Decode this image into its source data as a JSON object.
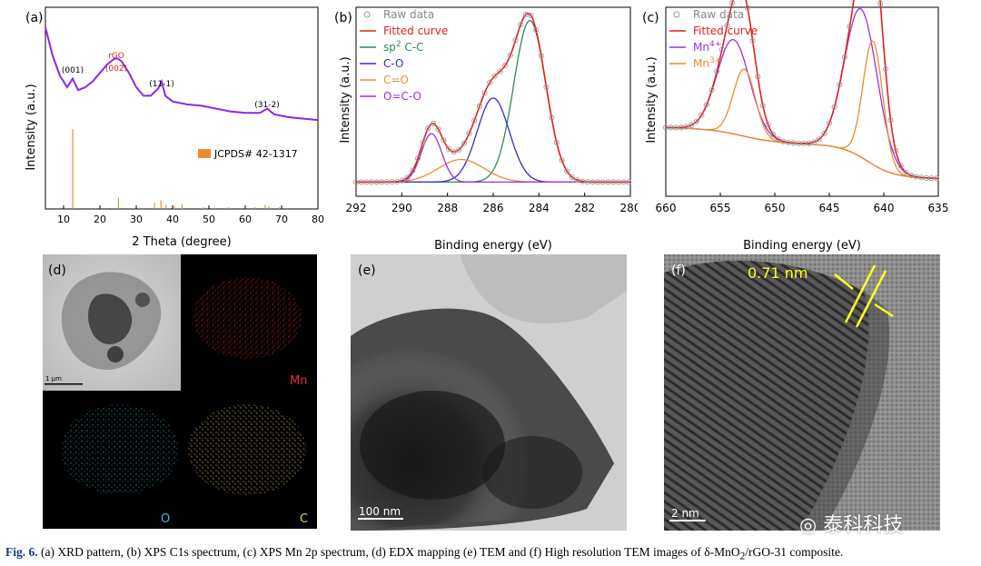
{
  "chart_data": [
    {
      "type": "line",
      "panel_label": "(a)",
      "xlabel": "2 Theta (degree)",
      "ylabel": "Intensity (a.u.)",
      "xlim": [
        5,
        80
      ],
      "xticks": [
        10,
        20,
        30,
        40,
        50,
        60,
        70,
        80
      ],
      "peak_labels": [
        {
          "text": "(001)",
          "x": 12.5
        },
        {
          "text": "rGO",
          "x": 24.5,
          "color": "#e02020"
        },
        {
          "text": "(002)",
          "x": 24.5,
          "color": "#e02020"
        },
        {
          "text": "(11-1)",
          "x": 37
        },
        {
          "text": "(31-2)",
          "x": 66
        }
      ],
      "series": [
        {
          "values_x": [
            5,
            7,
            9,
            11,
            12.5,
            14,
            16,
            18,
            20,
            22,
            24,
            25,
            26,
            28,
            30,
            32,
            34,
            36,
            37,
            38,
            40,
            44,
            48,
            52,
            56,
            60,
            64,
            66,
            68,
            72,
            76,
            80
          ],
          "values_y": [
            100,
            80,
            66,
            58,
            64,
            56,
            58,
            62,
            68,
            74,
            78,
            78,
            76,
            68,
            58,
            52,
            52,
            57,
            62,
            52,
            48,
            46,
            45,
            43,
            41,
            40,
            40,
            43,
            39,
            37,
            36,
            35
          ],
          "color": "#8a2be2"
        }
      ],
      "reference": {
        "name": "JCPDS# 42-1317",
        "color": "#f08a30",
        "lines_x": [
          12.5,
          25.1,
          35.0,
          36.8,
          38.2,
          40.5,
          42.6,
          48.5,
          55.4,
          62.7,
          65.5,
          66.5,
          69.4
        ],
        "lines_h": [
          100,
          14,
          8,
          11,
          5,
          4,
          6,
          2,
          2,
          2,
          5,
          3,
          2
        ]
      }
    },
    {
      "type": "line",
      "panel_label": "(b)",
      "xlabel": "Binding energy (eV)",
      "ylabel": "Intensity (a.u.)",
      "xlim": [
        292,
        280
      ],
      "xticks": [
        292,
        290,
        288,
        286,
        284,
        282,
        280
      ],
      "legend": [
        {
          "name": "Raw data",
          "color": "#999999",
          "marker": "circle"
        },
        {
          "name": "Fitted curve",
          "color": "#e02020"
        },
        {
          "name": "sp",
          "sup": "2",
          "suffix": " C-C",
          "color": "#2e8b57"
        },
        {
          "name": "C-O",
          "color": "#3030c0"
        },
        {
          "name": "C=O",
          "color": "#f08a30"
        },
        {
          "name": "O=C-O",
          "color": "#9b30e0"
        }
      ],
      "components": [
        {
          "name": "sp2 C-C",
          "center": 284.4,
          "height": 100,
          "width": 0.7,
          "color": "#2e8b57"
        },
        {
          "name": "C-O",
          "center": 286.0,
          "height": 52,
          "width": 0.7,
          "color": "#3030c0"
        },
        {
          "name": "C=O",
          "center": 287.4,
          "height": 14,
          "width": 1.0,
          "color": "#f08a30"
        },
        {
          "name": "O=C-O",
          "center": 288.7,
          "height": 30,
          "width": 0.45,
          "color": "#9b30e0"
        }
      ],
      "baseline": 2
    },
    {
      "type": "line",
      "panel_label": "(c)",
      "xlabel": "Binding energy (eV)",
      "ylabel": "Intensity (a.u.)",
      "xlim": [
        660,
        635
      ],
      "xticks": [
        660,
        655,
        650,
        645,
        640,
        635
      ],
      "legend": [
        {
          "name": "Raw data",
          "color": "#999999",
          "marker": "circle"
        },
        {
          "name": "Fitted curve",
          "color": "#e02020"
        },
        {
          "name": "Mn",
          "sup": "4+",
          "suffix": "",
          "color": "#9b30e0"
        },
        {
          "name": "Mn",
          "sup": "3+",
          "suffix": "",
          "color": "#f08a30"
        }
      ],
      "components": [
        {
          "name": "Mn4+ 2p1/2",
          "center": 653.8,
          "height": 42,
          "width": 1.5,
          "color": "#9b30e0"
        },
        {
          "name": "Mn3+ 2p1/2",
          "center": 652.8,
          "height": 30,
          "width": 1.0,
          "color": "#f08a30"
        },
        {
          "name": "Mn4+ 2p3/2",
          "center": 642.1,
          "height": 66,
          "width": 1.5,
          "color": "#9b30e0"
        },
        {
          "name": "Mn3+ 2p3/2",
          "center": 641.0,
          "height": 55,
          "width": 0.9,
          "color": "#f08a30"
        }
      ]
    }
  ],
  "panels": {
    "d_label": "(d)",
    "d_scalebar": "1 μm",
    "d_mn": "Mn",
    "d_o": "O",
    "d_c": "C",
    "e_label": "(e)",
    "e_scalebar": "100 nm",
    "f_label": "(f)",
    "f_spacing": "0.71 nm",
    "f_scalebar": "2 nm"
  },
  "watermark": "泰科科技",
  "caption": {
    "fig": "Fig. 6.",
    "text": " (a) XRD pattern, (b) XPS C1s spectrum, (c) XPS Mn 2p spectrum, (d) EDX mapping (e) TEM and (f) High resolution TEM images of δ-MnO",
    "sub": "2",
    "tail": "/rGO-31 composite."
  },
  "colors": {
    "mn_map": "#c02020",
    "o_map": "#40a0b0",
    "c_map": "#c0b060",
    "annotation": "#ffff20"
  }
}
